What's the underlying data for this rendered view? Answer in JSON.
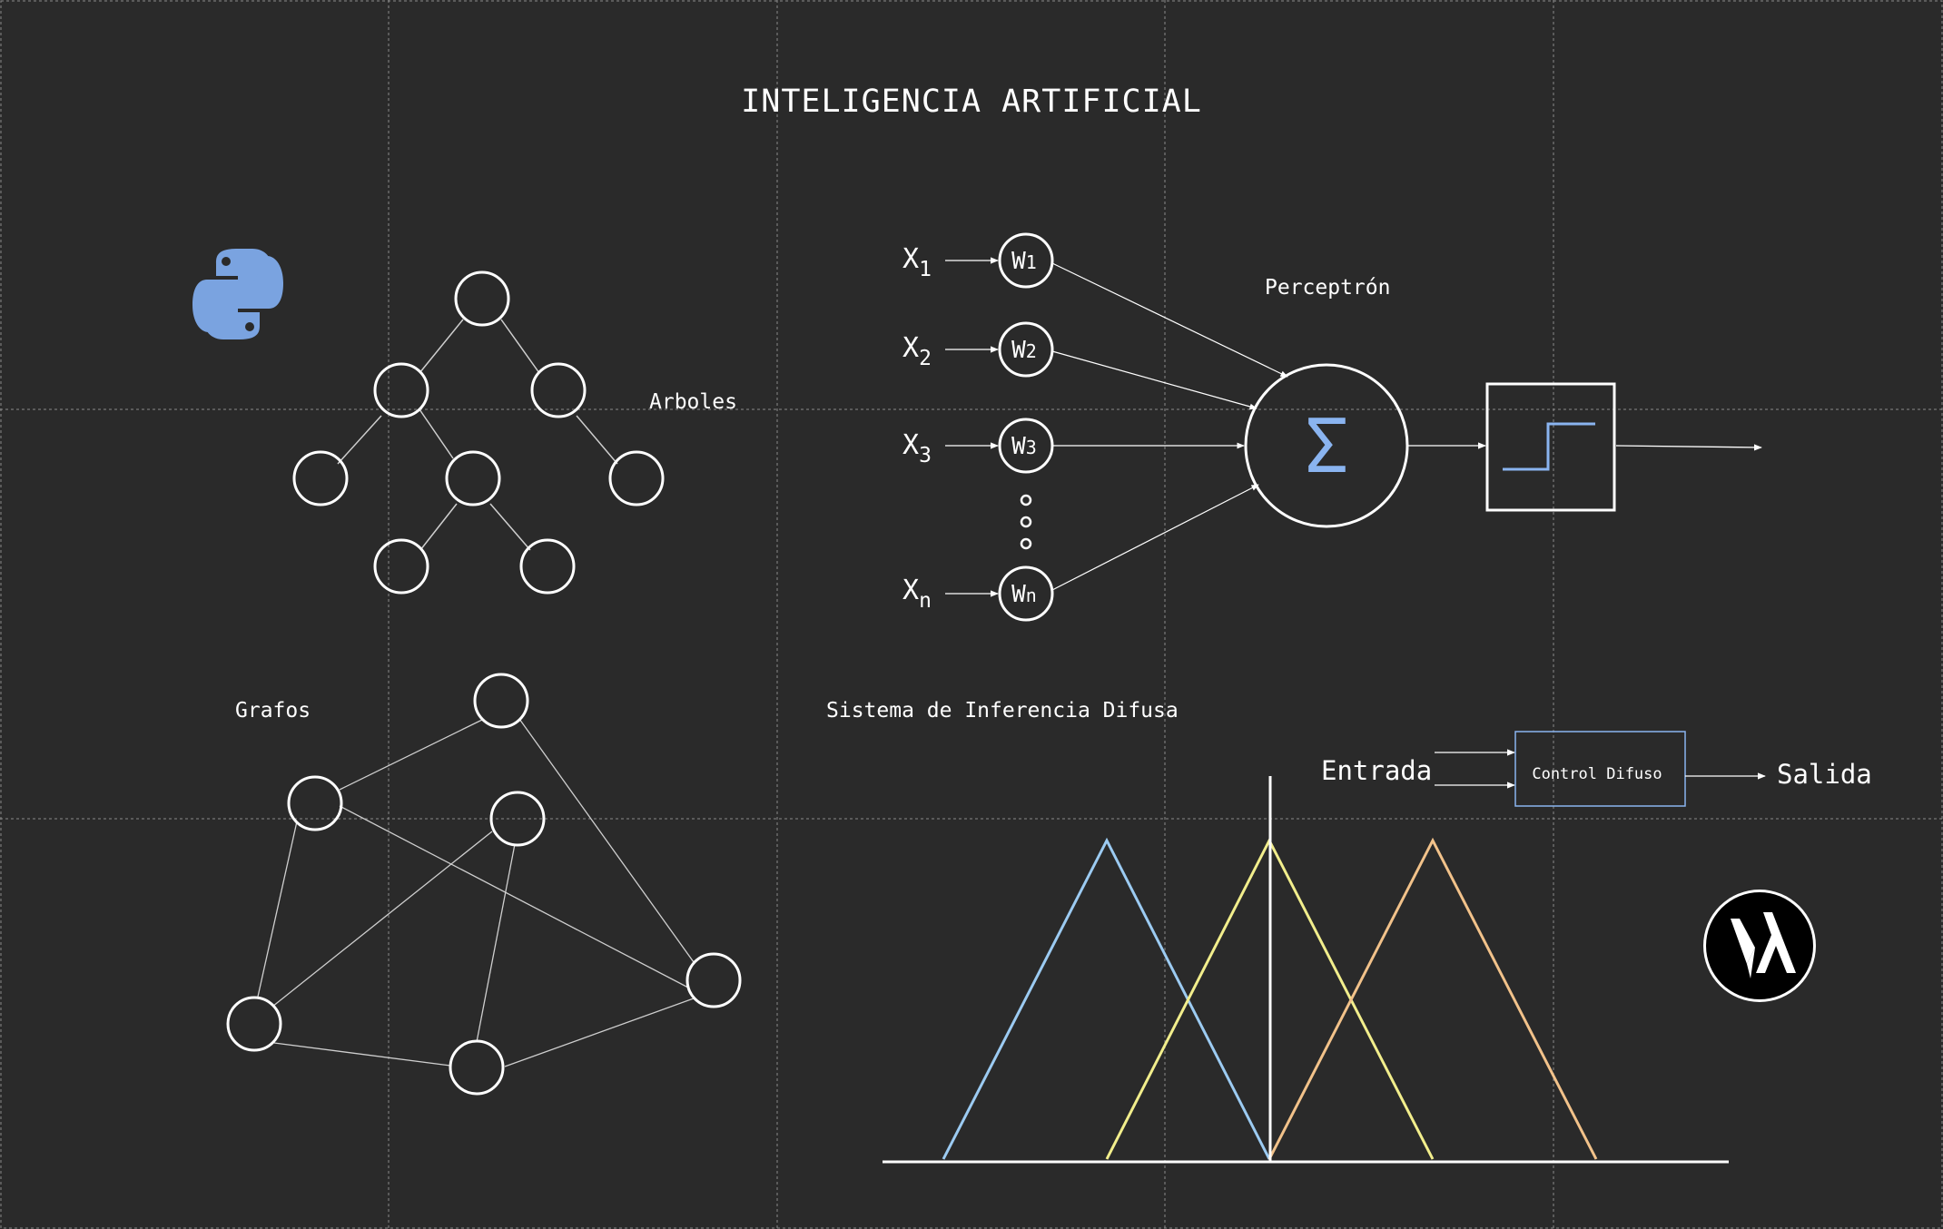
{
  "title": "INTELIGENCIA ARTIFICIAL",
  "colors": {
    "background": "#2a2a2a",
    "grid": "#8a8a8a",
    "stroke": "#ffffff",
    "edge": "#cfcfcf",
    "python_blue": "#7aa3e0",
    "accent_blue": "#8ab4f0",
    "fuzzy_blue": "#9ccbf2",
    "fuzzy_yellow": "#f2ee8c",
    "fuzzy_orange": "#f2c28a",
    "control_box": "#8ab4f0"
  },
  "icons": {
    "python": "python-logo-icon",
    "logo": "lambda-logo-icon"
  },
  "trees": {
    "label": "Arboles"
  },
  "graphs": {
    "label": "Grafos"
  },
  "perceptron": {
    "label": "Perceptrón",
    "inputs": [
      {
        "x": "X",
        "sub": "1",
        "w": "W",
        "wsub": "1"
      },
      {
        "x": "X",
        "sub": "2",
        "w": "W",
        "wsub": "2"
      },
      {
        "x": "X",
        "sub": "3",
        "w": "W",
        "wsub": "3"
      },
      {
        "x": "X",
        "sub": "n",
        "w": "W",
        "wsub": "n"
      }
    ],
    "sum_symbol": "Σ"
  },
  "fuzzy": {
    "label": "Sistema de Inferencia Difusa",
    "input_label": "Entrada",
    "control_label": "Control Difuso",
    "output_label": "Salida"
  }
}
